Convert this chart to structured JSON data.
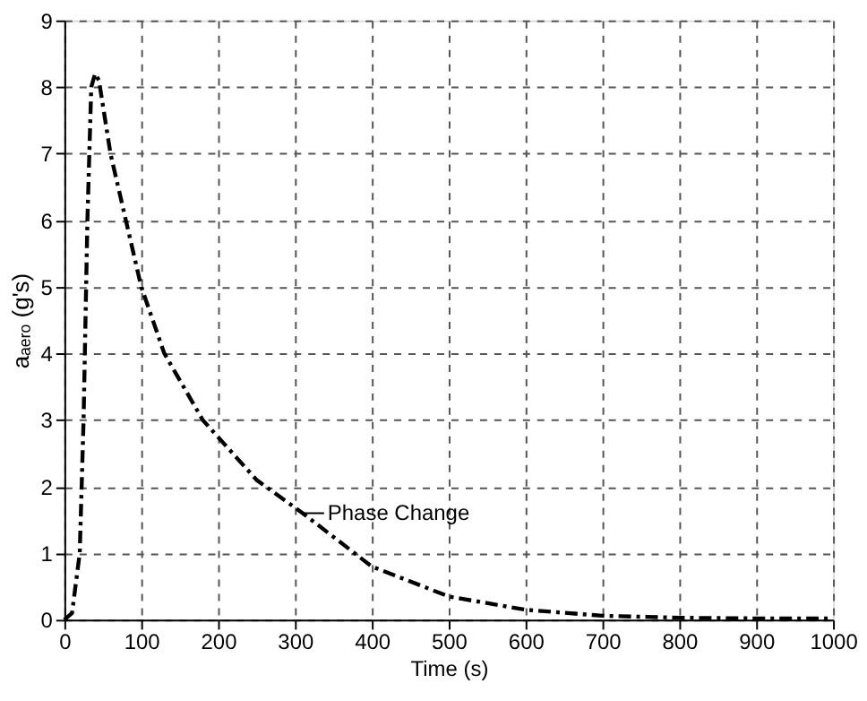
{
  "chart_data": {
    "type": "line",
    "xlabel": "Time (s)",
    "ylabel": "aₐₑᵣₒ (g's)",
    "x": [
      0,
      10,
      20,
      25,
      30,
      35,
      40,
      45,
      60,
      80,
      100,
      130,
      180,
      250,
      310,
      400,
      500,
      600,
      700,
      800,
      900,
      1000
    ],
    "series": [
      {
        "color": "#000000",
        "values": [
          0,
          0.1,
          1,
          3,
          6,
          8,
          8.2,
          8.1,
          7,
          6,
          5,
          4,
          3,
          2.1,
          1.6,
          0.8,
          0.35,
          0.15,
          0.06,
          0.03,
          0.02,
          0.02
        ]
      }
    ],
    "xlim": [
      0,
      1000
    ],
    "xticks": [
      0,
      100,
      200,
      300,
      400,
      500,
      600,
      700,
      800,
      900,
      1000
    ],
    "ylim": [
      0,
      9
    ],
    "yticks": [
      0,
      1,
      2,
      3,
      4,
      5,
      6,
      7,
      8,
      9
    ],
    "grid": true,
    "line_style": "dashed",
    "marker": "none",
    "annotations": [
      {
        "text": "Phase Change",
        "x": 310,
        "y": 1.6
      }
    ]
  }
}
